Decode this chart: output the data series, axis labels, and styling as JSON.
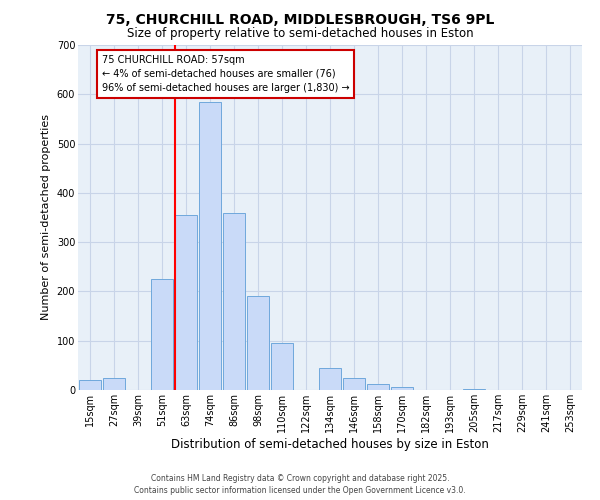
{
  "title1": "75, CHURCHILL ROAD, MIDDLESBROUGH, TS6 9PL",
  "title2": "Size of property relative to semi-detached houses in Eston",
  "xlabel": "Distribution of semi-detached houses by size in Eston",
  "ylabel": "Number of semi-detached properties",
  "bin_labels": [
    "15sqm",
    "27sqm",
    "39sqm",
    "51sqm",
    "63sqm",
    "74sqm",
    "86sqm",
    "98sqm",
    "110sqm",
    "122sqm",
    "134sqm",
    "146sqm",
    "158sqm",
    "170sqm",
    "182sqm",
    "193sqm",
    "205sqm",
    "217sqm",
    "229sqm",
    "241sqm",
    "253sqm"
  ],
  "bar_values": [
    20,
    25,
    0,
    225,
    355,
    585,
    360,
    190,
    95,
    0,
    45,
    25,
    12,
    6,
    0,
    0,
    2,
    0,
    0,
    0,
    0
  ],
  "bar_color": "#c9daf8",
  "bar_edge_color": "#6fa8dc",
  "ylim": [
    0,
    700
  ],
  "yticks": [
    0,
    100,
    200,
    300,
    400,
    500,
    600,
    700
  ],
  "annotation_title": "75 CHURCHILL ROAD: 57sqm",
  "annotation_line1": "← 4% of semi-detached houses are smaller (76)",
  "annotation_line2": "96% of semi-detached houses are larger (1,830) →",
  "box_color": "#ffffff",
  "box_edge_color": "#cc0000",
  "footer1": "Contains HM Land Registry data © Crown copyright and database right 2025.",
  "footer2": "Contains public sector information licensed under the Open Government Licence v3.0.",
  "bg_color": "#ffffff",
  "axes_bg_color": "#e8f0f8",
  "grid_color": "#c8d4e8",
  "red_line_bin_index": 4,
  "title1_fontsize": 10,
  "title2_fontsize": 8.5,
  "ylabel_fontsize": 8,
  "xlabel_fontsize": 8.5,
  "tick_fontsize": 7,
  "ann_fontsize": 7,
  "footer_fontsize": 5.5
}
